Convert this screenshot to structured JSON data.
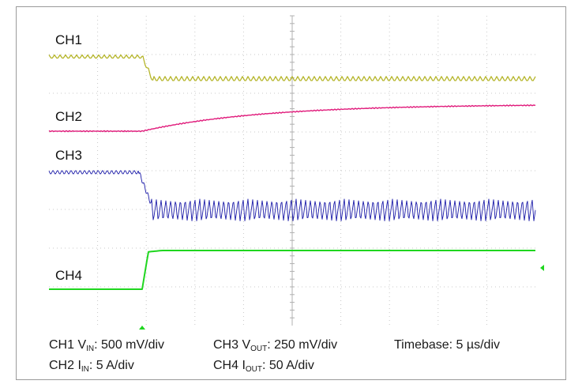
{
  "chart_data": {
    "type": "line",
    "title": "",
    "xlabel": "",
    "ylabel": "",
    "grid": true,
    "divisions": {
      "x": 10,
      "y": 8
    },
    "x_unit": "µs",
    "x_per_div": 5,
    "x_range": [
      0,
      50
    ],
    "step_time_us": 10,
    "series": [
      {
        "name": "CH1",
        "color": "#b5b52a",
        "quantity": "VIN",
        "scale": "500 mV/div",
        "description_values": {
          "before_level_div": 1.55,
          "after_level_div": 0.95,
          "ripple_div": 0.08
        }
      },
      {
        "name": "CH2",
        "color": "#e0197a",
        "quantity": "IIN",
        "scale": "5 A/div",
        "description_values": {
          "start_level_div": 0.0,
          "end_level_div": 0.55
        }
      },
      {
        "name": "CH3",
        "color": "#1a1aa8",
        "quantity": "VOUT",
        "scale": "250 mV/div",
        "description_values": {
          "before_level_div": 0.0,
          "after_level_div": -0.75,
          "ripple_div": 0.35
        }
      },
      {
        "name": "CH4",
        "color": "#1fd61f",
        "quantity": "IOUT",
        "scale": "50 A/div",
        "description_values": {
          "before_level_div": -0.45,
          "after_level_div": 0.0
        }
      }
    ]
  },
  "labels": {
    "ch1": "CH1",
    "ch2": "CH2",
    "ch3": "CH3",
    "ch4": "CH4"
  },
  "caption": {
    "ch1_prefix": "CH1 V",
    "ch1_sub": "IN",
    "ch1_scale": ": 500 mV/div",
    "ch3_prefix": "CH3 V",
    "ch3_sub": "OUT",
    "ch3_scale": ": 250 mV/div",
    "timebase": "Timebase: 5 µs/div",
    "ch2_prefix": "CH2 I",
    "ch2_sub": "IN",
    "ch2_scale": ": 5 A/div",
    "ch4_prefix": "CH4 I",
    "ch4_sub": "OUT",
    "ch4_scale": ": 50 A/div"
  }
}
